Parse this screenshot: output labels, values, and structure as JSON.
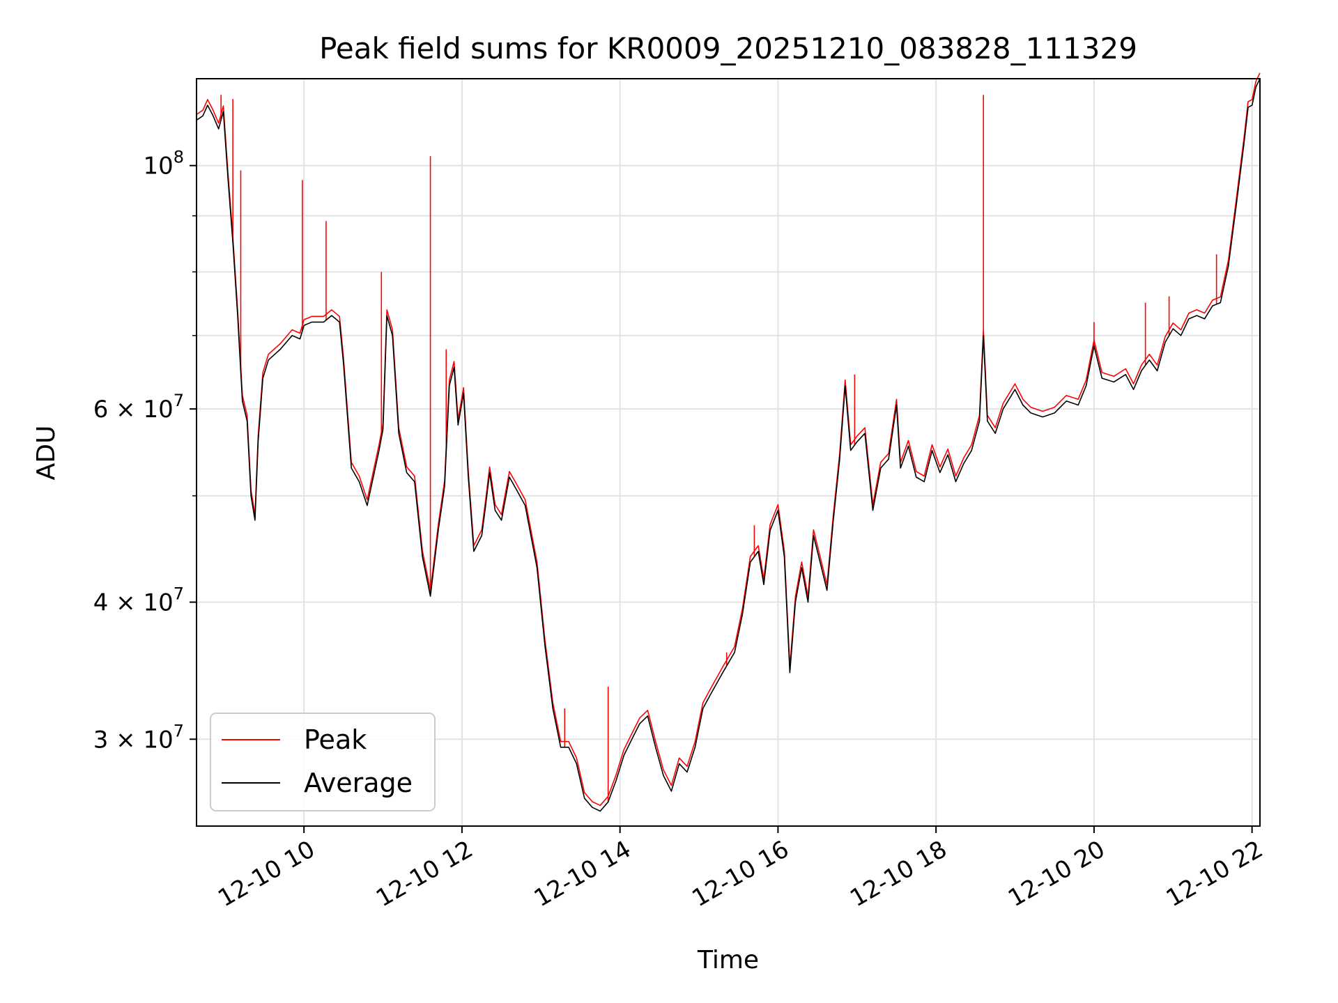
{
  "chart_data": {
    "type": "line",
    "title": "Peak field sums for KR0009_20251210_083828_111329",
    "xlabel": "Time",
    "ylabel": "ADU",
    "yscale": "log",
    "ylim": [
      25000000,
      120000000
    ],
    "xlim": [
      8.64,
      22.1
    ],
    "grid": true,
    "legend_position": "lower-left",
    "x_ticks": [
      {
        "value": 10,
        "label": "12-10 10"
      },
      {
        "value": 12,
        "label": "12-10 12"
      },
      {
        "value": 14,
        "label": "12-10 14"
      },
      {
        "value": 16,
        "label": "12-10 16"
      },
      {
        "value": 18,
        "label": "12-10 18"
      },
      {
        "value": 20,
        "label": "12-10 20"
      },
      {
        "value": 22,
        "label": "12-10 22"
      }
    ],
    "y_major_ticks": [
      {
        "value": 100000000,
        "base": "10",
        "exp": "8"
      },
      {
        "value": 60000000,
        "base": "6 × 10",
        "exp": "7"
      },
      {
        "value": 40000000,
        "base": "4 × 10",
        "exp": "7"
      },
      {
        "value": 30000000,
        "base": "3 × 10",
        "exp": "7"
      }
    ],
    "y_minor_ticks": [
      90000000,
      80000000,
      70000000,
      50000000
    ],
    "series": [
      {
        "name": "Peak",
        "color": "#ff0000",
        "spikes": [
          [
            8.95,
            116000000
          ],
          [
            9.1,
            115000000
          ],
          [
            9.2,
            99000000
          ],
          [
            9.98,
            97000000
          ],
          [
            10.28,
            89000000
          ],
          [
            10.98,
            80000000
          ],
          [
            11.6,
            102000000
          ],
          [
            11.8,
            68000000
          ],
          [
            13.3,
            32000000
          ],
          [
            13.85,
            33500000
          ],
          [
            15.35,
            36000000
          ],
          [
            15.7,
            47000000
          ],
          [
            16.97,
            64500000
          ],
          [
            18.6,
            116000000
          ],
          [
            20.0,
            72000000
          ],
          [
            20.65,
            75000000
          ],
          [
            20.95,
            76000000
          ],
          [
            21.55,
            83000000
          ]
        ]
      },
      {
        "name": "Average",
        "color": "#000000",
        "points": [
          [
            8.64,
            110000000
          ],
          [
            8.72,
            111000000
          ],
          [
            8.78,
            113500000
          ],
          [
            8.85,
            111000000
          ],
          [
            8.92,
            108000000
          ],
          [
            8.98,
            112000000
          ],
          [
            9.04,
            97000000
          ],
          [
            9.1,
            85000000
          ],
          [
            9.16,
            73000000
          ],
          [
            9.22,
            61000000
          ],
          [
            9.28,
            58500000
          ],
          [
            9.33,
            50000000
          ],
          [
            9.38,
            47500000
          ],
          [
            9.42,
            56000000
          ],
          [
            9.48,
            64000000
          ],
          [
            9.55,
            66500000
          ],
          [
            9.7,
            68000000
          ],
          [
            9.85,
            70000000
          ],
          [
            9.95,
            69500000
          ],
          [
            10.0,
            71500000
          ],
          [
            10.1,
            72000000
          ],
          [
            10.25,
            72000000
          ],
          [
            10.35,
            73000000
          ],
          [
            10.45,
            72000000
          ],
          [
            10.5,
            66000000
          ],
          [
            10.6,
            53000000
          ],
          [
            10.7,
            51500000
          ],
          [
            10.8,
            49000000
          ],
          [
            10.95,
            55000000
          ],
          [
            11.0,
            57500000
          ],
          [
            11.05,
            73000000
          ],
          [
            11.12,
            70000000
          ],
          [
            11.2,
            57000000
          ],
          [
            11.3,
            52500000
          ],
          [
            11.4,
            51500000
          ],
          [
            11.5,
            44000000
          ],
          [
            11.6,
            40500000
          ],
          [
            11.7,
            46500000
          ],
          [
            11.78,
            51000000
          ],
          [
            11.84,
            63000000
          ],
          [
            11.9,
            65500000
          ],
          [
            11.95,
            58000000
          ],
          [
            12.02,
            62000000
          ],
          [
            12.08,
            52000000
          ],
          [
            12.15,
            44500000
          ],
          [
            12.25,
            46000000
          ],
          [
            12.3,
            49000000
          ],
          [
            12.35,
            52500000
          ],
          [
            12.42,
            48500000
          ],
          [
            12.5,
            47500000
          ],
          [
            12.6,
            52000000
          ],
          [
            12.7,
            50500000
          ],
          [
            12.8,
            49000000
          ],
          [
            12.95,
            43000000
          ],
          [
            13.05,
            36500000
          ],
          [
            13.15,
            32000000
          ],
          [
            13.25,
            29500000
          ],
          [
            13.35,
            29500000
          ],
          [
            13.45,
            28500000
          ],
          [
            13.55,
            26500000
          ],
          [
            13.65,
            26000000
          ],
          [
            13.75,
            25800000
          ],
          [
            13.85,
            26300000
          ],
          [
            13.95,
            27500000
          ],
          [
            14.05,
            29000000
          ],
          [
            14.15,
            30000000
          ],
          [
            14.25,
            31000000
          ],
          [
            14.35,
            31500000
          ],
          [
            14.45,
            29500000
          ],
          [
            14.55,
            27800000
          ],
          [
            14.65,
            26900000
          ],
          [
            14.75,
            28500000
          ],
          [
            14.85,
            28000000
          ],
          [
            14.95,
            29500000
          ],
          [
            15.05,
            32000000
          ],
          [
            15.15,
            33000000
          ],
          [
            15.3,
            34500000
          ],
          [
            15.45,
            36000000
          ],
          [
            15.55,
            39000000
          ],
          [
            15.65,
            43500000
          ],
          [
            15.75,
            44500000
          ],
          [
            15.82,
            41500000
          ],
          [
            15.9,
            46500000
          ],
          [
            16.0,
            48500000
          ],
          [
            16.08,
            44000000
          ],
          [
            16.15,
            34500000
          ],
          [
            16.22,
            40000000
          ],
          [
            16.3,
            43000000
          ],
          [
            16.38,
            40000000
          ],
          [
            16.45,
            46000000
          ],
          [
            16.55,
            43000000
          ],
          [
            16.62,
            41000000
          ],
          [
            16.7,
            47500000
          ],
          [
            16.78,
            54000000
          ],
          [
            16.85,
            63000000
          ],
          [
            16.92,
            55000000
          ],
          [
            17.0,
            56000000
          ],
          [
            17.1,
            57000000
          ],
          [
            17.2,
            48500000
          ],
          [
            17.3,
            53000000
          ],
          [
            17.4,
            54000000
          ],
          [
            17.5,
            60500000
          ],
          [
            17.55,
            53000000
          ],
          [
            17.65,
            55500000
          ],
          [
            17.75,
            52000000
          ],
          [
            17.85,
            51500000
          ],
          [
            17.95,
            55000000
          ],
          [
            18.05,
            52500000
          ],
          [
            18.15,
            54500000
          ],
          [
            18.25,
            51500000
          ],
          [
            18.35,
            53500000
          ],
          [
            18.45,
            55000000
          ],
          [
            18.55,
            58500000
          ],
          [
            18.6,
            70000000
          ],
          [
            18.65,
            58500000
          ],
          [
            18.75,
            57000000
          ],
          [
            18.85,
            60000000
          ],
          [
            19.0,
            62500000
          ],
          [
            19.1,
            60500000
          ],
          [
            19.2,
            59500000
          ],
          [
            19.35,
            59000000
          ],
          [
            19.5,
            59500000
          ],
          [
            19.65,
            61000000
          ],
          [
            19.8,
            60500000
          ],
          [
            19.9,
            63000000
          ],
          [
            20.0,
            68500000
          ],
          [
            20.1,
            64000000
          ],
          [
            20.25,
            63500000
          ],
          [
            20.4,
            64500000
          ],
          [
            20.5,
            62500000
          ],
          [
            20.6,
            65000000
          ],
          [
            20.7,
            66500000
          ],
          [
            20.8,
            65000000
          ],
          [
            20.9,
            69000000
          ],
          [
            21.0,
            71000000
          ],
          [
            21.1,
            70000000
          ],
          [
            21.2,
            72500000
          ],
          [
            21.3,
            73000000
          ],
          [
            21.4,
            72500000
          ],
          [
            21.5,
            74500000
          ],
          [
            21.6,
            75000000
          ],
          [
            21.7,
            81000000
          ],
          [
            21.8,
            92000000
          ],
          [
            21.9,
            105000000
          ],
          [
            21.95,
            113000000
          ],
          [
            22.0,
            113500000
          ],
          [
            22.05,
            118000000
          ],
          [
            22.1,
            120000000
          ]
        ]
      }
    ]
  }
}
